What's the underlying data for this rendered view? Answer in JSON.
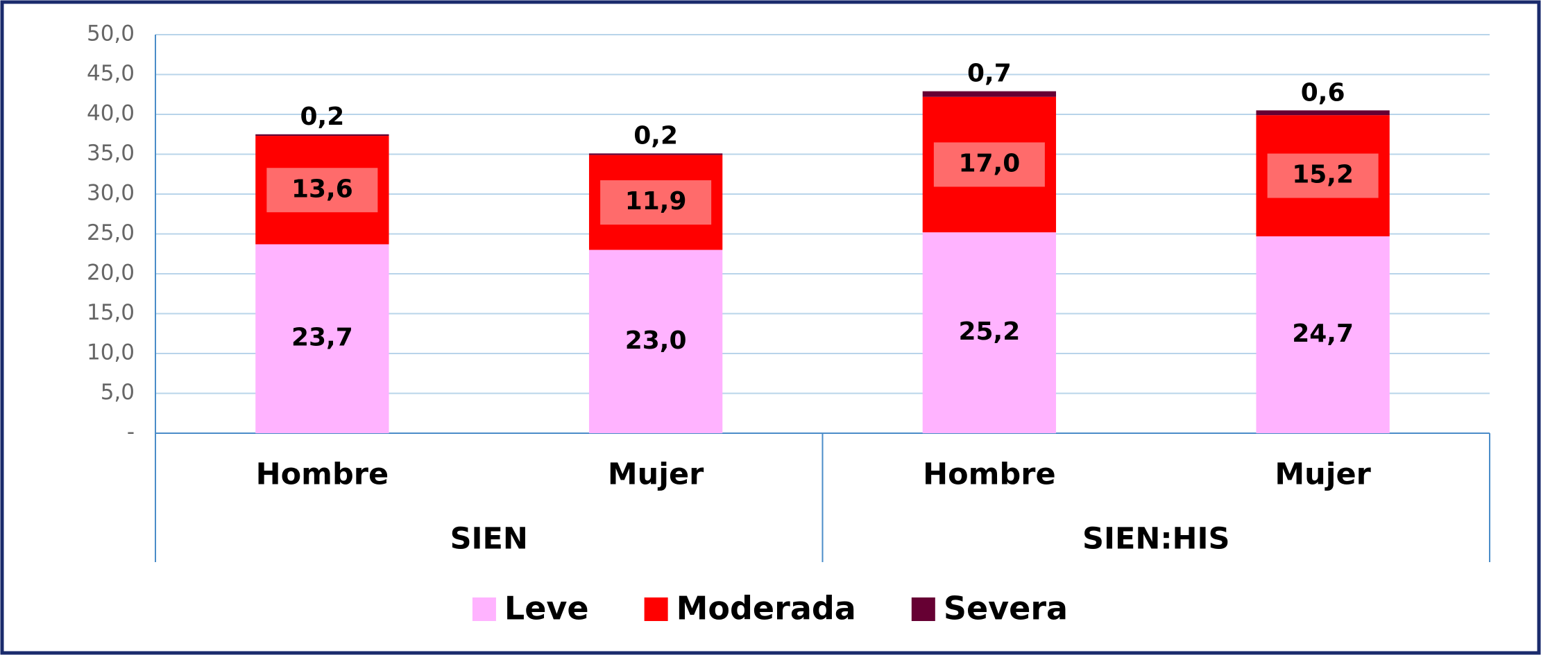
{
  "chart_data": {
    "type": "stacked_bar",
    "categories": [
      "Hombre",
      "Mujer",
      "Hombre",
      "Mujer"
    ],
    "groups": [
      "SIEN",
      "SIEN:HIS"
    ],
    "series": [
      {
        "name": "Leve",
        "color": "#ffb3ff",
        "values": [
          23.7,
          23.0,
          25.2,
          24.7
        ],
        "value_labels": [
          "23,7",
          "23,0",
          "25,2",
          "24,7"
        ]
      },
      {
        "name": "Moderada",
        "color": "#ff0000",
        "values": [
          13.6,
          11.9,
          17.0,
          15.2
        ],
        "value_labels": [
          "13,6",
          "11,9",
          "17,0",
          "15,2"
        ]
      },
      {
        "name": "Severa",
        "color": "#660033",
        "values": [
          0.2,
          0.2,
          0.7,
          0.6
        ],
        "value_labels": [
          "0,2",
          "0,2",
          "0,7",
          "0,6"
        ]
      }
    ],
    "ylim": [
      0,
      50
    ],
    "yticks": [
      {
        "value": 0,
        "label": "-"
      },
      {
        "value": 5,
        "label": "5,0"
      },
      {
        "value": 10,
        "label": "10,0"
      },
      {
        "value": 15,
        "label": "15,0"
      },
      {
        "value": 20,
        "label": "20,0"
      },
      {
        "value": 25,
        "label": "25,0"
      },
      {
        "value": 30,
        "label": "30,0"
      },
      {
        "value": 35,
        "label": "35,0"
      },
      {
        "value": 40,
        "label": "40,0"
      },
      {
        "value": 45,
        "label": "45,0"
      },
      {
        "value": 50,
        "label": "50,0"
      }
    ],
    "grid": true,
    "legend": "bottom"
  }
}
